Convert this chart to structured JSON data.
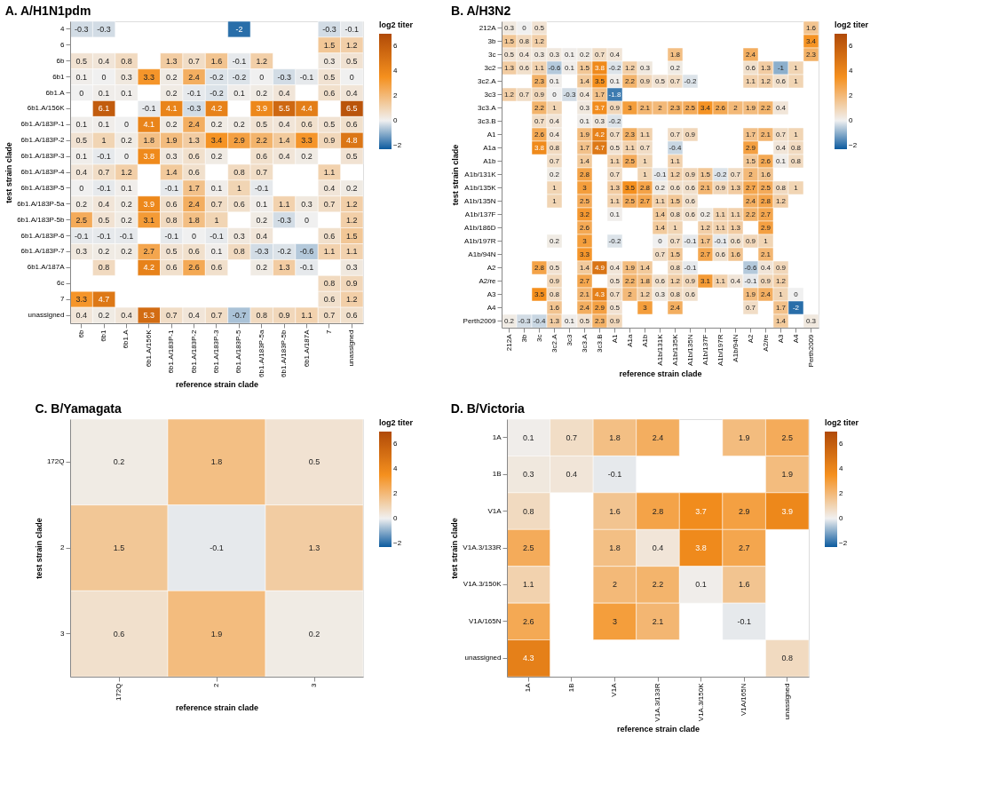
{
  "chart_data": [
    {
      "type": "heatmap",
      "title": "A.   A/H1N1pdm",
      "xlabel": "reference strain clade",
      "ylabel": "test strain clade",
      "clabel": "log2 titer",
      "clim": [
        -2.3,
        7
      ],
      "cticks": [
        -2,
        0,
        2,
        4,
        6
      ],
      "data_labels": true,
      "grid": false,
      "categories": [
        "6b",
        "6b1",
        "6b1.A",
        "6b1.A/156K",
        "6b1.A/183P-1",
        "6b1.A/183P-2",
        "6b1.A/183P-3",
        "6b1.A/183P-5",
        "6b1.A/183P-5a",
        "6b1.A/183P-5b",
        "6b1.A/187A",
        "7",
        "unassigned"
      ],
      "y_categories": [
        "4",
        "6",
        "6b",
        "6b1",
        "6b1.A",
        "6b1.A/156K",
        "6b1.A/183P-1",
        "6b1.A/183P-2",
        "6b1.A/183P-3",
        "6b1.A/183P-4",
        "6b1.A/183P-5",
        "6b1.A/183P-5a",
        "6b1.A/183P-5b",
        "6b1.A/183P-6",
        "6b1.A/183P-7",
        "6b1.A/187A",
        "6c",
        "7",
        "unassigned"
      ],
      "cells": [
        [
          -0.3,
          -0.3,
          null,
          null,
          null,
          null,
          null,
          -2,
          null,
          null,
          null,
          -0.3,
          -0.1
        ],
        [
          null,
          null,
          null,
          null,
          null,
          null,
          null,
          null,
          null,
          null,
          null,
          1.5,
          1.2
        ],
        [
          0.5,
          0.4,
          0.8,
          null,
          1.3,
          0.7,
          1.6,
          -0.1,
          1.2,
          null,
          null,
          0.3,
          0.5
        ],
        [
          0.1,
          0,
          0.3,
          3.3,
          0.2,
          2.4,
          -0.2,
          -0.2,
          0,
          -0.3,
          -0.1,
          0.5,
          0
        ],
        [
          0,
          0.1,
          0.1,
          null,
          0.2,
          -0.1,
          -0.2,
          0.1,
          0.2,
          0.4,
          null,
          0.6,
          0.4
        ],
        [
          null,
          6.1,
          null,
          -0.1,
          4.1,
          -0.3,
          4.2,
          null,
          3.9,
          5.5,
          4.4,
          null,
          6.5
        ],
        [
          0.1,
          0.1,
          0,
          4.1,
          0.2,
          2.4,
          0.2,
          0.2,
          0.5,
          0.4,
          0.6,
          0.5,
          0.6
        ],
        [
          0.5,
          1,
          0.2,
          1.8,
          1.9,
          1.3,
          3.4,
          2.9,
          2.2,
          1.4,
          3.3,
          0.9,
          4.8
        ],
        [
          0.1,
          -0.1,
          0,
          3.8,
          0.3,
          0.6,
          0.2,
          null,
          0.6,
          0.4,
          0.2,
          null,
          0.5
        ],
        [
          0.4,
          0.7,
          1.2,
          null,
          1.4,
          0.6,
          null,
          0.8,
          0.7,
          null,
          null,
          1.1,
          null
        ],
        [
          0,
          -0.1,
          0.1,
          null,
          -0.1,
          1.7,
          0.1,
          1,
          -0.1,
          null,
          null,
          0.4,
          0.2
        ],
        [
          0.2,
          0.4,
          0.2,
          3.9,
          0.6,
          2.4,
          0.7,
          0.6,
          0.1,
          1.1,
          0.3,
          0.7,
          1.2
        ],
        [
          2.5,
          0.5,
          0.2,
          3.1,
          0.8,
          1.8,
          1,
          null,
          0.2,
          -0.3,
          0,
          null,
          1.2
        ],
        [
          -0.1,
          -0.1,
          -0.1,
          null,
          -0.1,
          0,
          -0.1,
          0.3,
          0.4,
          null,
          null,
          0.6,
          1.5
        ],
        [
          0.3,
          0.2,
          0.2,
          2.7,
          0.5,
          0.6,
          0.1,
          0.8,
          -0.3,
          -0.2,
          -0.6,
          1.1,
          1.1
        ],
        [
          null,
          0.8,
          null,
          4.2,
          0.6,
          2.6,
          0.6,
          null,
          0.2,
          1.3,
          -0.1,
          null,
          0.3
        ],
        [
          null,
          null,
          null,
          null,
          null,
          null,
          null,
          null,
          null,
          null,
          null,
          0.8,
          0.9
        ],
        [
          3.3,
          4.7,
          null,
          null,
          null,
          null,
          null,
          null,
          null,
          null,
          null,
          0.6,
          1.2
        ],
        [
          0.4,
          0.2,
          0.4,
          5.3,
          0.7,
          0.4,
          0.7,
          -0.7,
          0.8,
          0.9,
          1.1,
          0.7,
          0.6
        ]
      ]
    },
    {
      "type": "heatmap",
      "title": "B.   A/H3N2",
      "xlabel": "reference strain clade",
      "ylabel": "test strain clade",
      "clabel": "log2 titer",
      "clim": [
        -2.3,
        7
      ],
      "cticks": [
        -2,
        0,
        2,
        4,
        6
      ],
      "data_labels": true,
      "grid": false,
      "categories": [
        "212A",
        "3b",
        "3c",
        "3c2.A",
        "3c3",
        "3c3.A",
        "3c3.B",
        "A1",
        "A1a",
        "A1b",
        "A1b/131K",
        "A1b/135K",
        "A1b/135N",
        "A1b/137F",
        "A1b/197R",
        "A1b/94N",
        "A2",
        "A2/re",
        "A3",
        "A4",
        "Perth2009"
      ],
      "y_categories": [
        "212A",
        "3b",
        "3c",
        "3c2",
        "3c2.A",
        "3c3",
        "3c3.A",
        "3c3.B",
        "A1",
        "A1a",
        "A1b",
        "A1b/131K",
        "A1b/135K",
        "A1b/135N",
        "A1b/137F",
        "A1b/186D",
        "A1b/197R",
        "A1b/94N",
        "A2",
        "A2/re",
        "A3",
        "A4",
        "Perth2009"
      ],
      "cells": [
        [
          0.3,
          0,
          0.5,
          null,
          null,
          null,
          null,
          null,
          null,
          null,
          null,
          null,
          null,
          null,
          null,
          null,
          null,
          null,
          null,
          null,
          1.6
        ],
        [
          1.5,
          0.8,
          1.2,
          null,
          null,
          null,
          null,
          null,
          null,
          null,
          null,
          null,
          null,
          null,
          null,
          null,
          null,
          null,
          null,
          null,
          3.4
        ],
        [
          0.5,
          0.4,
          0.3,
          0.3,
          0.1,
          0.2,
          0.7,
          0.4,
          null,
          null,
          null,
          1.8,
          null,
          null,
          null,
          null,
          2.4,
          null,
          null,
          null,
          2.3
        ],
        [
          1.3,
          0.6,
          1.1,
          -0.6,
          0.1,
          1.5,
          3.8,
          -0.2,
          1.2,
          0.3,
          null,
          0.2,
          null,
          null,
          null,
          null,
          0.6,
          1.3,
          -1,
          1,
          null
        ],
        [
          null,
          null,
          2.3,
          0.1,
          null,
          1.4,
          3.5,
          0.1,
          2.2,
          0.9,
          0.5,
          0.7,
          -0.2,
          null,
          null,
          null,
          1.1,
          1.2,
          0.6,
          1,
          null
        ],
        [
          1.2,
          0.7,
          0.9,
          0,
          -0.3,
          0.4,
          1.7,
          -1.8,
          null,
          null,
          null,
          null,
          null,
          null,
          null,
          null,
          null,
          null,
          null,
          null,
          null
        ],
        [
          null,
          null,
          2.2,
          1,
          null,
          0.3,
          3.7,
          0.9,
          3,
          2.1,
          2,
          2.3,
          2.5,
          3.4,
          2.6,
          2,
          1.9,
          2.2,
          0.4,
          null,
          null
        ],
        [
          null,
          null,
          0.7,
          0.4,
          null,
          0.1,
          0.3,
          -0.2,
          null,
          null,
          null,
          null,
          null,
          null,
          null,
          null,
          null,
          null,
          null,
          null,
          null
        ],
        [
          null,
          null,
          2.6,
          0.4,
          null,
          1.9,
          4.2,
          0.7,
          2.3,
          1.1,
          null,
          0.7,
          0.9,
          null,
          null,
          null,
          1.7,
          2.1,
          0.7,
          1,
          null
        ],
        [
          null,
          null,
          3.8,
          0.8,
          null,
          1.7,
          4.7,
          0.5,
          1.1,
          0.7,
          null,
          -0.4,
          null,
          null,
          null,
          null,
          2.9,
          null,
          0.4,
          0.8,
          null
        ],
        [
          null,
          null,
          null,
          0.7,
          null,
          1.4,
          null,
          1.1,
          2.5,
          1,
          null,
          1.1,
          null,
          null,
          null,
          null,
          1.5,
          2.6,
          0.1,
          0.8,
          null
        ],
        [
          null,
          null,
          null,
          0.2,
          null,
          2.8,
          null,
          0.7,
          null,
          1,
          -0.1,
          1.2,
          0.9,
          1.5,
          -0.2,
          0.7,
          2,
          1.6,
          null,
          null,
          null
        ],
        [
          null,
          null,
          null,
          1,
          null,
          3,
          null,
          1.3,
          3.5,
          2.8,
          0.2,
          0.6,
          0.6,
          2.1,
          0.9,
          1.3,
          2.7,
          2.5,
          0.8,
          1,
          null
        ],
        [
          null,
          null,
          null,
          1,
          null,
          2.5,
          null,
          1.1,
          2.5,
          2.7,
          1.1,
          1.5,
          0.6,
          null,
          null,
          null,
          2.4,
          2.8,
          1.2,
          null,
          null
        ],
        [
          null,
          null,
          null,
          null,
          null,
          3.2,
          null,
          0.1,
          null,
          null,
          1.4,
          0.8,
          0.6,
          0.2,
          1.1,
          1.1,
          2.2,
          2.7,
          null,
          null,
          null
        ],
        [
          null,
          null,
          null,
          null,
          null,
          2.6,
          null,
          null,
          null,
          null,
          1.4,
          1,
          null,
          1.2,
          1.1,
          1.3,
          null,
          2.9,
          null,
          null,
          null
        ],
        [
          null,
          null,
          null,
          0.2,
          null,
          3,
          null,
          -0.2,
          null,
          null,
          0,
          0.7,
          -0.1,
          1.7,
          -0.1,
          0.6,
          0.9,
          1,
          null,
          null,
          null
        ],
        [
          null,
          null,
          null,
          null,
          null,
          3.3,
          null,
          null,
          null,
          null,
          0.7,
          1.5,
          null,
          2.7,
          0.6,
          1.6,
          null,
          2.1,
          null,
          null,
          null
        ],
        [
          null,
          null,
          2.8,
          0.5,
          null,
          1.4,
          4.9,
          0.4,
          1.9,
          1.4,
          null,
          0.8,
          -0.1,
          null,
          null,
          null,
          -0.6,
          0.4,
          0.9,
          null,
          null
        ],
        [
          null,
          null,
          null,
          0.9,
          null,
          2.7,
          null,
          0.5,
          2.2,
          1.8,
          0.6,
          1.2,
          0.9,
          3.1,
          1.1,
          0.4,
          -0.1,
          0.9,
          1.2,
          null,
          null
        ],
        [
          null,
          null,
          3.5,
          0.8,
          null,
          2.1,
          4.3,
          0.7,
          2,
          1.2,
          0.3,
          0.8,
          0.6,
          null,
          null,
          null,
          1.9,
          2.4,
          1,
          0,
          null
        ],
        [
          null,
          null,
          null,
          1.6,
          null,
          2.4,
          2.9,
          0.5,
          null,
          3,
          null,
          2.4,
          null,
          null,
          null,
          null,
          0.7,
          null,
          1.7,
          -2,
          null
        ],
        [
          0.2,
          -0.3,
          -0.4,
          1.3,
          0.1,
          0.5,
          2.3,
          0.9,
          null,
          null,
          null,
          null,
          null,
          null,
          null,
          null,
          null,
          null,
          1.4,
          null,
          0.3
        ]
      ]
    },
    {
      "type": "heatmap",
      "title": "C.   B/Yamagata",
      "xlabel": "reference strain clade",
      "ylabel": "test strain clade",
      "clabel": "log2 titer",
      "clim": [
        -2.3,
        7
      ],
      "cticks": [
        -2,
        0,
        2,
        4,
        6
      ],
      "data_labels": true,
      "grid": false,
      "categories": [
        "172Q",
        "2",
        "3"
      ],
      "y_categories": [
        "172Q",
        "2",
        "3"
      ],
      "cells": [
        [
          0.2,
          1.8,
          0.5
        ],
        [
          1.5,
          -0.1,
          1.3
        ],
        [
          0.6,
          1.9,
          0.2
        ]
      ]
    },
    {
      "type": "heatmap",
      "title": "D.   B/Victoria",
      "xlabel": "reference strain clade",
      "ylabel": "test strain clade",
      "clabel": "log2 titer",
      "clim": [
        -2.3,
        7
      ],
      "cticks": [
        -2,
        0,
        2,
        4,
        6
      ],
      "data_labels": true,
      "grid": false,
      "categories": [
        "1A",
        "1B",
        "V1A",
        "V1A.3/133R",
        "V1A.3/150K",
        "V1A/165N",
        "unassigned"
      ],
      "y_categories": [
        "1A",
        "1B",
        "V1A",
        "V1A.3/133R",
        "V1A.3/150K",
        "V1A/165N",
        "unassigned"
      ],
      "cells": [
        [
          0.1,
          0.7,
          1.8,
          2.4,
          null,
          1.9,
          2.5
        ],
        [
          0.3,
          0.4,
          -0.1,
          null,
          null,
          null,
          1.9
        ],
        [
          0.8,
          null,
          1.6,
          2.8,
          3.7,
          2.9,
          3.9
        ],
        [
          2.5,
          null,
          1.8,
          0.4,
          3.8,
          2.7,
          null
        ],
        [
          1.1,
          null,
          2,
          2.2,
          0.1,
          1.6,
          null
        ],
        [
          2.6,
          null,
          3,
          2.1,
          null,
          -0.1,
          null
        ],
        [
          4.3,
          null,
          null,
          null,
          null,
          null,
          0.8
        ]
      ]
    }
  ]
}
